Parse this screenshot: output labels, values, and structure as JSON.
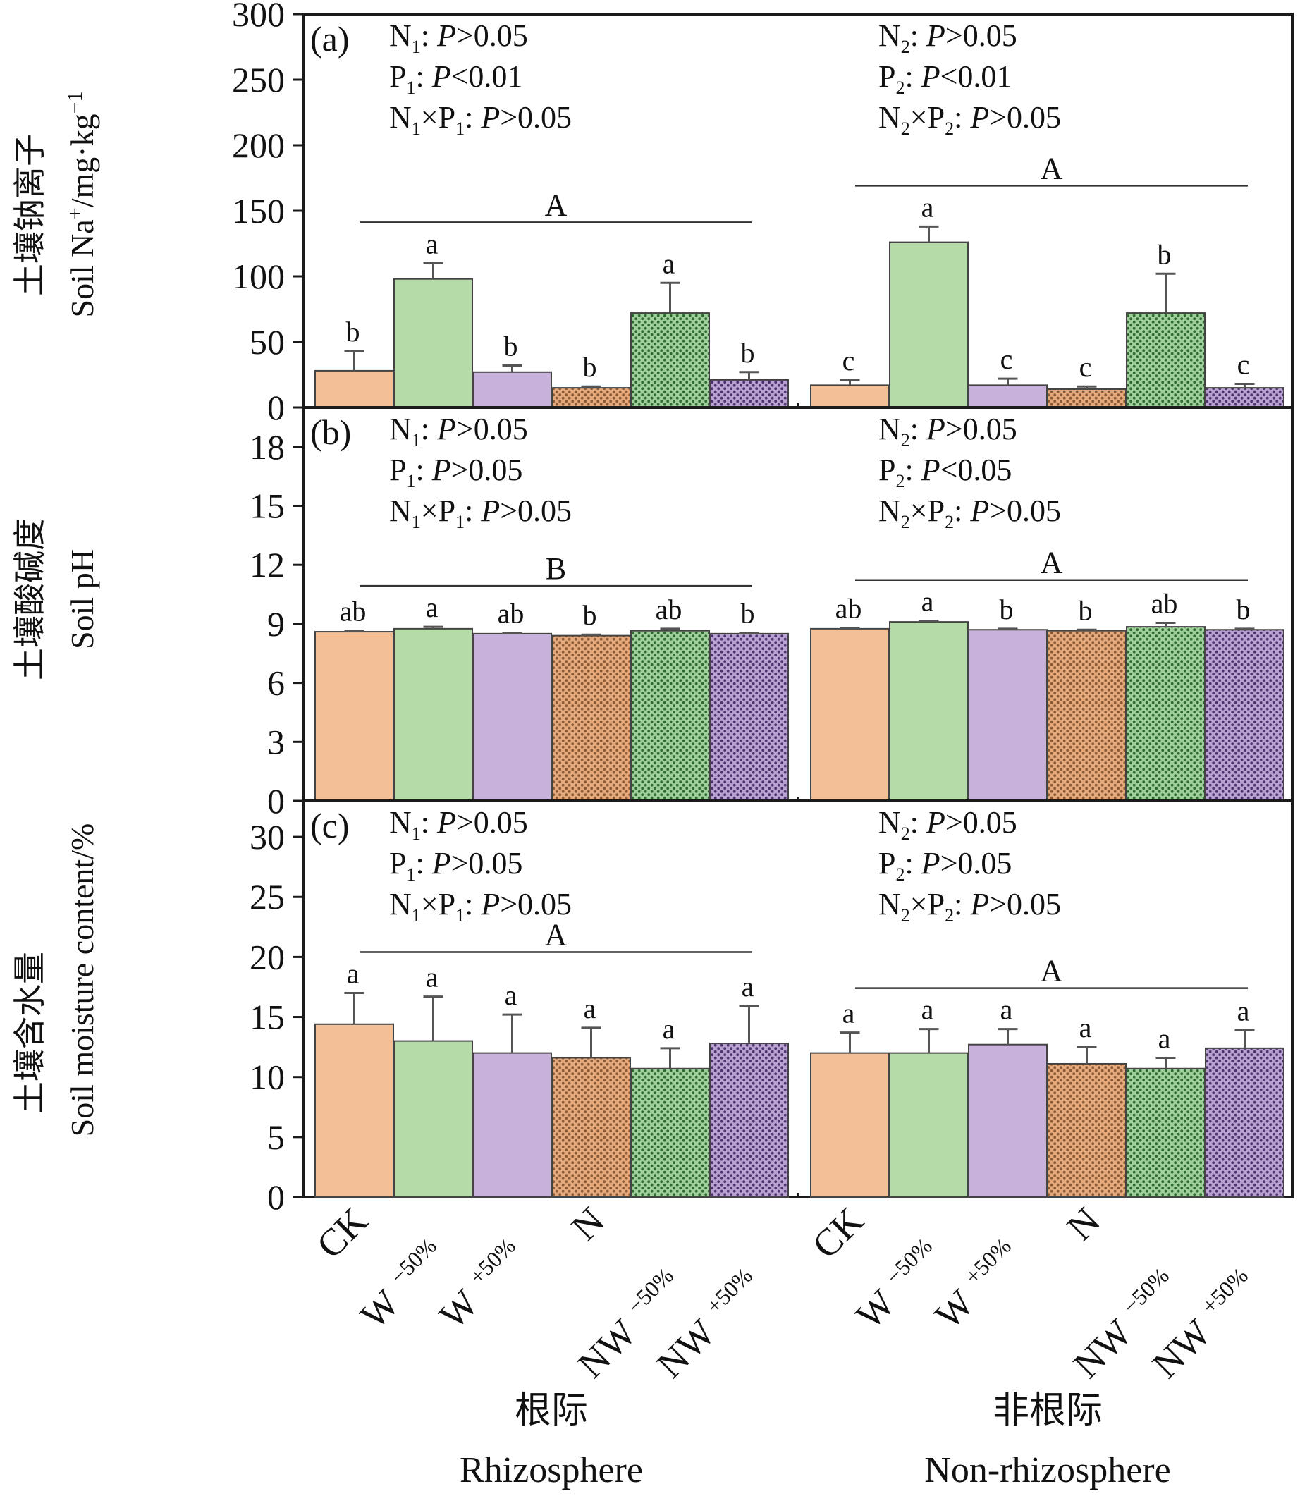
{
  "figure": {
    "group_labels": [
      {
        "zh": "根际",
        "en": "Rhizosphere"
      },
      {
        "zh": "非根际",
        "en": "Non-rhizosphere"
      }
    ],
    "treatments": [
      {
        "base": "CK",
        "sub": ""
      },
      {
        "base": "W",
        "sub": "−50%"
      },
      {
        "base": "W",
        "sub": "+50%"
      },
      {
        "base": "N",
        "sub": ""
      },
      {
        "base": "NW",
        "sub": "−50%"
      },
      {
        "base": "NW",
        "sub": "+50%"
      }
    ],
    "colors": {
      "CK": "#f2bf96",
      "W-50%": "#b5dba8",
      "W+50%": "#c8b1da",
      "N": "#c98a5d",
      "NW-50%": "#4f9a57",
      "NW+50%": "#7b5d9c",
      "axis": "#1a1a1a",
      "error": "#555555"
    },
    "legend_note": "patterned bars: N, NW-50%, NW+50%"
  },
  "chart_data": [
    {
      "type": "bar",
      "panel": "(a)",
      "title": "",
      "ylabel_zh": "土壤钠离子",
      "ylabel_en": "Soil Na",
      "ylabel_unit": "/mg·kg",
      "ylim": [
        0,
        300
      ],
      "yticks": [
        0,
        50,
        100,
        150,
        200,
        250,
        300
      ],
      "categories": [
        "CK",
        "W-50%",
        "W+50%",
        "N",
        "NW-50%",
        "NW+50%"
      ],
      "series": [
        {
          "name": "Rhizosphere",
          "values": [
            28,
            98,
            27,
            15,
            72,
            21
          ],
          "errors": [
            15,
            12,
            5,
            1,
            23,
            6
          ],
          "letters": [
            "b",
            "a",
            "b",
            "b",
            "a",
            "b"
          ]
        },
        {
          "name": "Non-rhizosphere",
          "values": [
            17,
            126,
            17,
            14,
            72,
            15
          ],
          "errors": [
            4,
            12,
            5,
            2,
            30,
            3
          ],
          "letters": [
            "c",
            "a",
            "c",
            "c",
            "b",
            "c"
          ]
        }
      ],
      "group_letters": [
        "A",
        "A"
      ],
      "stats": [
        [
          {
            "a": "N",
            "sub": "1",
            "b": "",
            "sub2": "",
            "p": "P>0.05"
          },
          {
            "a": "P",
            "sub": "1",
            "b": "",
            "sub2": "",
            "p": "P<0.01"
          },
          {
            "a": "N",
            "sub": "1",
            "b": "×P",
            "sub2": "1",
            "p": "P>0.05"
          }
        ],
        [
          {
            "a": "N",
            "sub": "2",
            "b": "",
            "sub2": "",
            "p": "P>0.05"
          },
          {
            "a": "P",
            "sub": "2",
            "b": "",
            "sub2": "",
            "p": "P<0.01"
          },
          {
            "a": "N",
            "sub": "2",
            "b": "×P",
            "sub2": "2",
            "p": "P>0.05"
          }
        ]
      ]
    },
    {
      "type": "bar",
      "panel": "(b)",
      "title": "",
      "ylabel_zh": "土壤酸碱度",
      "ylabel_en": "Soil pH",
      "ylabel_unit": "",
      "ylim": [
        0,
        20
      ],
      "yticks": [
        0,
        3,
        6,
        9,
        12,
        15,
        18
      ],
      "categories": [
        "CK",
        "W-50%",
        "W+50%",
        "N",
        "NW-50%",
        "NW+50%"
      ],
      "series": [
        {
          "name": "Rhizosphere",
          "values": [
            8.6,
            8.75,
            8.5,
            8.4,
            8.65,
            8.5
          ],
          "errors": [
            0.05,
            0.1,
            0.05,
            0.05,
            0.1,
            0.05
          ],
          "letters": [
            "ab",
            "a",
            "ab",
            "b",
            "ab",
            "b"
          ]
        },
        {
          "name": "Non-rhizosphere",
          "values": [
            8.75,
            9.1,
            8.7,
            8.65,
            8.85,
            8.7
          ],
          "errors": [
            0.05,
            0.05,
            0.05,
            0.05,
            0.2,
            0.05
          ],
          "letters": [
            "ab",
            "a",
            "b",
            "b",
            "ab",
            "b"
          ]
        }
      ],
      "group_letters": [
        "B",
        "A"
      ],
      "stats": [
        [
          {
            "a": "N",
            "sub": "1",
            "b": "",
            "sub2": "",
            "p": "P>0.05"
          },
          {
            "a": "P",
            "sub": "1",
            "b": "",
            "sub2": "",
            "p": "P>0.05"
          },
          {
            "a": "N",
            "sub": "1",
            "b": "×P",
            "sub2": "1",
            "p": "P>0.05"
          }
        ],
        [
          {
            "a": "N",
            "sub": "2",
            "b": "",
            "sub2": "",
            "p": "P>0.05"
          },
          {
            "a": "P",
            "sub": "2",
            "b": "",
            "sub2": "",
            "p": "P<0.05"
          },
          {
            "a": "N",
            "sub": "2",
            "b": "×P",
            "sub2": "2",
            "p": "P>0.05"
          }
        ]
      ]
    },
    {
      "type": "bar",
      "panel": "(c)",
      "title": "",
      "ylabel_zh": "土壤含水量",
      "ylabel_en": "Soil moisture content/%",
      "ylabel_unit": "",
      "ylim": [
        0,
        33
      ],
      "yticks": [
        0,
        5,
        10,
        15,
        20,
        25,
        30
      ],
      "categories": [
        "CK",
        "W-50%",
        "W+50%",
        "N",
        "NW-50%",
        "NW+50%"
      ],
      "series": [
        {
          "name": "Rhizosphere",
          "values": [
            14.4,
            13.0,
            12.0,
            11.6,
            10.7,
            12.8
          ],
          "errors": [
            2.6,
            3.7,
            3.2,
            2.5,
            1.7,
            3.1
          ],
          "letters": [
            "a",
            "a",
            "a",
            "a",
            "a",
            "a"
          ]
        },
        {
          "name": "Non-rhizosphere",
          "values": [
            12.0,
            12.0,
            12.7,
            11.1,
            10.7,
            12.4
          ],
          "errors": [
            1.7,
            2.0,
            1.3,
            1.4,
            0.9,
            1.5
          ],
          "letters": [
            "a",
            "a",
            "a",
            "a",
            "a",
            "a"
          ]
        }
      ],
      "group_letters": [
        "A",
        "A"
      ],
      "stats": [
        [
          {
            "a": "N",
            "sub": "1",
            "b": "",
            "sub2": "",
            "p": "P>0.05"
          },
          {
            "a": "P",
            "sub": "1",
            "b": "",
            "sub2": "",
            "p": "P>0.05"
          },
          {
            "a": "N",
            "sub": "1",
            "b": "×P",
            "sub2": "1",
            "p": "P>0.05"
          }
        ],
        [
          {
            "a": "N",
            "sub": "2",
            "b": "",
            "sub2": "",
            "p": "P>0.05"
          },
          {
            "a": "P",
            "sub": "2",
            "b": "",
            "sub2": "",
            "p": "P>0.05"
          },
          {
            "a": "N",
            "sub": "2",
            "b": "×P",
            "sub2": "2",
            "p": "P>0.05"
          }
        ]
      ]
    }
  ]
}
